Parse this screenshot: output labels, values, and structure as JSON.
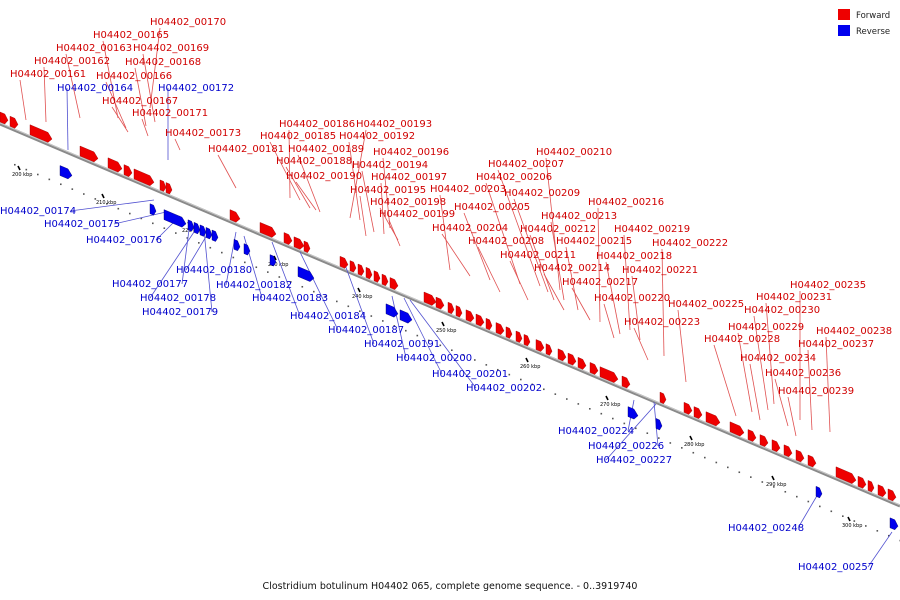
{
  "caption": "Clostridium botulinum H04402 065, complete genome sequence. - 0..3919740",
  "legend": [
    {
      "label": "Forward",
      "color": "#ee0000"
    },
    {
      "label": "Reverse",
      "color": "#0000ee"
    }
  ],
  "strand_colors": {
    "forward": "#ee0000",
    "reverse": "#0000ee",
    "backbone": "#8a8a8a"
  },
  "ticks": [
    "200 kbp",
    "210 kbp",
    "220 kbp",
    "230 kbp",
    "240 kbp",
    "250 kbp",
    "260 kbp",
    "270 kbp",
    "280 kbp",
    "290 kbp",
    "300 kbp"
  ],
  "forward_genes": [
    "H04402_00170",
    "H04402_00165",
    "H04402_00163",
    "H04402_00169",
    "H04402_00162",
    "H04402_00168",
    "H04402_00161",
    "H04402_00166",
    "H04402_00167",
    "H04402_00171",
    "H04402_00173",
    "H04402_00186",
    "H04402_00193",
    "H04402_00185",
    "H04402_00192",
    "H04402_00181",
    "H04402_00189",
    "H04402_00196",
    "H04402_00188",
    "H04402_00194",
    "H04402_00190",
    "H04402_00197",
    "H04402_00195",
    "H04402_00198",
    "H04402_00199",
    "H04402_00210",
    "H04402_00207",
    "H04402_00206",
    "H04402_00203",
    "H04402_00209",
    "H04402_00205",
    "H04402_00204",
    "H04402_00216",
    "H04402_00213",
    "H04402_00212",
    "H04402_00208",
    "H04402_00215",
    "H04402_00211",
    "H04402_00219",
    "H04402_00218",
    "H04402_00222",
    "H04402_00214",
    "H04402_00221",
    "H04402_00217",
    "H04402_00220",
    "H04402_00223",
    "H04402_00225",
    "H04402_00235",
    "H04402_00231",
    "H04402_00230",
    "H04402_00229",
    "H04402_00228",
    "H04402_00238",
    "H04402_00237",
    "H04402_00234",
    "H04402_00236",
    "H04402_00239"
  ],
  "reverse_genes": [
    "H04402_00164",
    "H04402_00172",
    "H04402_00174",
    "H04402_00175",
    "H04402_00176",
    "H04402_00177",
    "H04402_00178",
    "H04402_00179",
    "H04402_00180",
    "H04402_00182",
    "H04402_00183",
    "H04402_00184",
    "H04402_00187",
    "H04402_00191",
    "H04402_00200",
    "H04402_00201",
    "H04402_00202",
    "H04402_00224",
    "H04402_00226",
    "H04402_00227",
    "H04402_00248",
    "H04402_00257"
  ]
}
